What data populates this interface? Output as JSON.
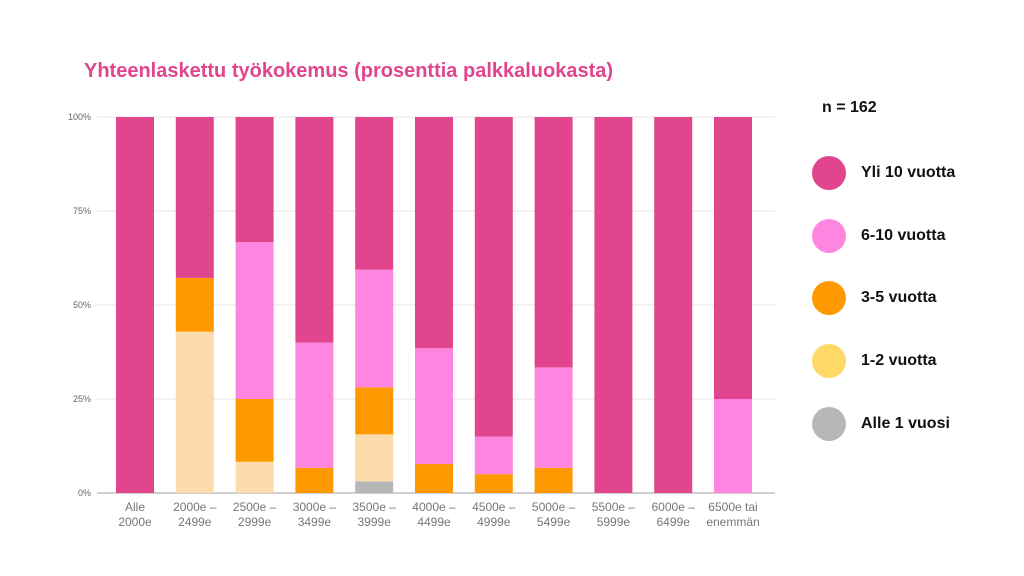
{
  "chart_data": {
    "type": "bar",
    "stacked": true,
    "title": "Yhteenlaskettu työkokemus (prosenttia palkkaluokasta)",
    "annotation": "n = 162",
    "ylim": [
      0,
      100
    ],
    "yticks": [
      "0%",
      "25%",
      "50%",
      "75%",
      "100%"
    ],
    "grid": true,
    "legend_position": "right",
    "categories": [
      [
        "Alle",
        "2000e"
      ],
      [
        "2000e –",
        "2499e"
      ],
      [
        "2500e –",
        "2999e"
      ],
      [
        "3000e –",
        "3499e"
      ],
      [
        "3500e –",
        "3999e"
      ],
      [
        "4000e –",
        "4499e"
      ],
      [
        "4500e –",
        "4999e"
      ],
      [
        "5000e –",
        "5499e"
      ],
      [
        "5500e –",
        "5999e"
      ],
      [
        "6000e –",
        "6499e"
      ],
      [
        "6500e tai",
        "enemmän"
      ]
    ],
    "series": [
      {
        "name": "Alle 1 vuosi",
        "color": "#b7b7b7",
        "values": [
          0,
          0,
          0,
          0,
          3.1,
          0,
          0,
          0,
          0,
          0,
          0
        ]
      },
      {
        "name": "1-2 vuotta",
        "color": "#fbdcaa",
        "values": [
          0,
          42.9,
          8.3,
          0,
          12.5,
          0,
          0,
          0,
          0,
          0,
          0
        ]
      },
      {
        "name": "3-5 vuotta",
        "color": "#ff9900",
        "values": [
          0,
          14.3,
          16.7,
          6.7,
          12.5,
          7.7,
          5.0,
          6.7,
          0,
          0,
          0
        ]
      },
      {
        "name": "6-10 vuotta",
        "color": "#ff86e0",
        "values": [
          0,
          0,
          41.7,
          33.3,
          31.3,
          30.8,
          10.0,
          26.7,
          0,
          0,
          25.0
        ]
      },
      {
        "name": "Yli 10 vuotta",
        "color": "#e0458d",
        "values": [
          100,
          42.8,
          33.3,
          60.0,
          40.6,
          61.5,
          85.0,
          66.6,
          100,
          100,
          75.0
        ]
      }
    ]
  },
  "legend": [
    {
      "label": "Yli 10 vuotta",
      "color": "#e0458d"
    },
    {
      "label": "6-10 vuotta",
      "color": "#ff86e0"
    },
    {
      "label": "3-5 vuotta",
      "color": "#ff9900"
    },
    {
      "label": "1-2 vuotta",
      "color": "#ffd966"
    },
    {
      "label": "Alle 1 vuosi",
      "color": "#b7b7b7"
    }
  ]
}
